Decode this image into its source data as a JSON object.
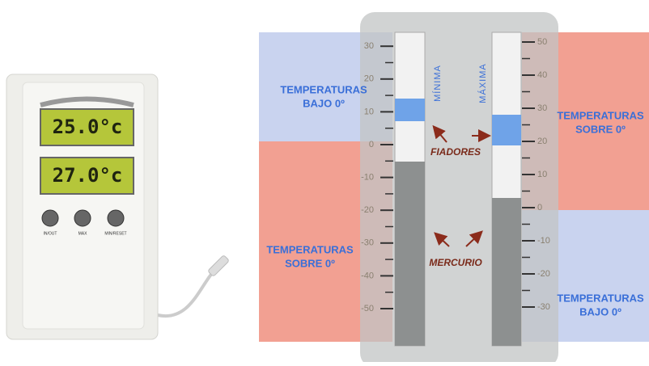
{
  "device": {
    "display_top": "25.0°c",
    "display_bottom": "27.0°c",
    "buttons": [
      "IN/OUT",
      "MAX",
      "MIN/RESET"
    ]
  },
  "scales": {
    "left": {
      "label": "MÍNIMA",
      "ticks": [
        30,
        20,
        10,
        0,
        -10,
        -20,
        -30,
        -40,
        -50
      ]
    },
    "right": {
      "label": "MÁXIMA",
      "ticks": [
        50,
        40,
        30,
        20,
        10,
        0,
        -10,
        -20,
        -30
      ]
    }
  },
  "regions": {
    "left_top": [
      "TEMPERATURAS",
      "BAJO 0º"
    ],
    "left_bottom": [
      "TEMPERATURAS",
      "SOBRE 0º"
    ],
    "right_top": [
      "TEMPERATURAS",
      "SOBRE 0º"
    ],
    "right_bottom": [
      "TEMPERATURAS",
      "BAJO 0º"
    ]
  },
  "annotations": {
    "fiadores": "FIADORES",
    "mercurio": "MERCURIO"
  }
}
